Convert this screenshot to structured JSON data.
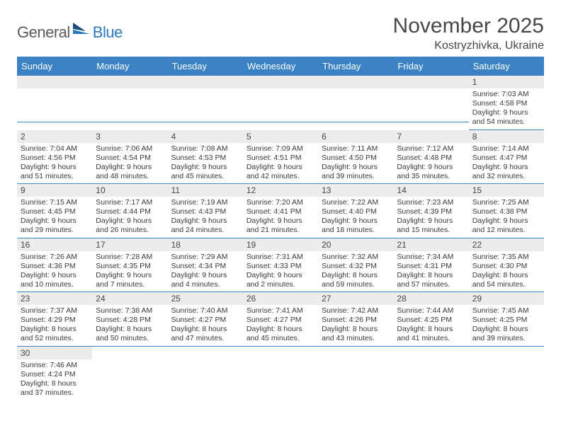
{
  "logo": {
    "part1": "General",
    "part2": "Blue"
  },
  "title": "November 2025",
  "location": "Kostryzhivka, Ukraine",
  "weekday_headers": [
    "Sunday",
    "Monday",
    "Tuesday",
    "Wednesday",
    "Thursday",
    "Friday",
    "Saturday"
  ],
  "header_bg": "#3a82c4",
  "header_fg": "#ffffff",
  "daynum_bg": "#ececec",
  "rule_color": "#3a82c4",
  "weeks": [
    [
      {
        "blank": true
      },
      {
        "blank": true
      },
      {
        "blank": true
      },
      {
        "blank": true
      },
      {
        "blank": true
      },
      {
        "blank": true
      },
      {
        "day": "1",
        "sunrise": "Sunrise: 7:03 AM",
        "sunset": "Sunset: 4:58 PM",
        "daylight1": "Daylight: 9 hours",
        "daylight2": "and 54 minutes."
      }
    ],
    [
      {
        "day": "2",
        "sunrise": "Sunrise: 7:04 AM",
        "sunset": "Sunset: 4:56 PM",
        "daylight1": "Daylight: 9 hours",
        "daylight2": "and 51 minutes."
      },
      {
        "day": "3",
        "sunrise": "Sunrise: 7:06 AM",
        "sunset": "Sunset: 4:54 PM",
        "daylight1": "Daylight: 9 hours",
        "daylight2": "and 48 minutes."
      },
      {
        "day": "4",
        "sunrise": "Sunrise: 7:08 AM",
        "sunset": "Sunset: 4:53 PM",
        "daylight1": "Daylight: 9 hours",
        "daylight2": "and 45 minutes."
      },
      {
        "day": "5",
        "sunrise": "Sunrise: 7:09 AM",
        "sunset": "Sunset: 4:51 PM",
        "daylight1": "Daylight: 9 hours",
        "daylight2": "and 42 minutes."
      },
      {
        "day": "6",
        "sunrise": "Sunrise: 7:11 AM",
        "sunset": "Sunset: 4:50 PM",
        "daylight1": "Daylight: 9 hours",
        "daylight2": "and 39 minutes."
      },
      {
        "day": "7",
        "sunrise": "Sunrise: 7:12 AM",
        "sunset": "Sunset: 4:48 PM",
        "daylight1": "Daylight: 9 hours",
        "daylight2": "and 35 minutes."
      },
      {
        "day": "8",
        "sunrise": "Sunrise: 7:14 AM",
        "sunset": "Sunset: 4:47 PM",
        "daylight1": "Daylight: 9 hours",
        "daylight2": "and 32 minutes."
      }
    ],
    [
      {
        "day": "9",
        "sunrise": "Sunrise: 7:15 AM",
        "sunset": "Sunset: 4:45 PM",
        "daylight1": "Daylight: 9 hours",
        "daylight2": "and 29 minutes."
      },
      {
        "day": "10",
        "sunrise": "Sunrise: 7:17 AM",
        "sunset": "Sunset: 4:44 PM",
        "daylight1": "Daylight: 9 hours",
        "daylight2": "and 26 minutes."
      },
      {
        "day": "11",
        "sunrise": "Sunrise: 7:19 AM",
        "sunset": "Sunset: 4:43 PM",
        "daylight1": "Daylight: 9 hours",
        "daylight2": "and 24 minutes."
      },
      {
        "day": "12",
        "sunrise": "Sunrise: 7:20 AM",
        "sunset": "Sunset: 4:41 PM",
        "daylight1": "Daylight: 9 hours",
        "daylight2": "and 21 minutes."
      },
      {
        "day": "13",
        "sunrise": "Sunrise: 7:22 AM",
        "sunset": "Sunset: 4:40 PM",
        "daylight1": "Daylight: 9 hours",
        "daylight2": "and 18 minutes."
      },
      {
        "day": "14",
        "sunrise": "Sunrise: 7:23 AM",
        "sunset": "Sunset: 4:39 PM",
        "daylight1": "Daylight: 9 hours",
        "daylight2": "and 15 minutes."
      },
      {
        "day": "15",
        "sunrise": "Sunrise: 7:25 AM",
        "sunset": "Sunset: 4:38 PM",
        "daylight1": "Daylight: 9 hours",
        "daylight2": "and 12 minutes."
      }
    ],
    [
      {
        "day": "16",
        "sunrise": "Sunrise: 7:26 AM",
        "sunset": "Sunset: 4:36 PM",
        "daylight1": "Daylight: 9 hours",
        "daylight2": "and 10 minutes."
      },
      {
        "day": "17",
        "sunrise": "Sunrise: 7:28 AM",
        "sunset": "Sunset: 4:35 PM",
        "daylight1": "Daylight: 9 hours",
        "daylight2": "and 7 minutes."
      },
      {
        "day": "18",
        "sunrise": "Sunrise: 7:29 AM",
        "sunset": "Sunset: 4:34 PM",
        "daylight1": "Daylight: 9 hours",
        "daylight2": "and 4 minutes."
      },
      {
        "day": "19",
        "sunrise": "Sunrise: 7:31 AM",
        "sunset": "Sunset: 4:33 PM",
        "daylight1": "Daylight: 9 hours",
        "daylight2": "and 2 minutes."
      },
      {
        "day": "20",
        "sunrise": "Sunrise: 7:32 AM",
        "sunset": "Sunset: 4:32 PM",
        "daylight1": "Daylight: 8 hours",
        "daylight2": "and 59 minutes."
      },
      {
        "day": "21",
        "sunrise": "Sunrise: 7:34 AM",
        "sunset": "Sunset: 4:31 PM",
        "daylight1": "Daylight: 8 hours",
        "daylight2": "and 57 minutes."
      },
      {
        "day": "22",
        "sunrise": "Sunrise: 7:35 AM",
        "sunset": "Sunset: 4:30 PM",
        "daylight1": "Daylight: 8 hours",
        "daylight2": "and 54 minutes."
      }
    ],
    [
      {
        "day": "23",
        "sunrise": "Sunrise: 7:37 AM",
        "sunset": "Sunset: 4:29 PM",
        "daylight1": "Daylight: 8 hours",
        "daylight2": "and 52 minutes."
      },
      {
        "day": "24",
        "sunrise": "Sunrise: 7:38 AM",
        "sunset": "Sunset: 4:28 PM",
        "daylight1": "Daylight: 8 hours",
        "daylight2": "and 50 minutes."
      },
      {
        "day": "25",
        "sunrise": "Sunrise: 7:40 AM",
        "sunset": "Sunset: 4:27 PM",
        "daylight1": "Daylight: 8 hours",
        "daylight2": "and 47 minutes."
      },
      {
        "day": "26",
        "sunrise": "Sunrise: 7:41 AM",
        "sunset": "Sunset: 4:27 PM",
        "daylight1": "Daylight: 8 hours",
        "daylight2": "and 45 minutes."
      },
      {
        "day": "27",
        "sunrise": "Sunrise: 7:42 AM",
        "sunset": "Sunset: 4:26 PM",
        "daylight1": "Daylight: 8 hours",
        "daylight2": "and 43 minutes."
      },
      {
        "day": "28",
        "sunrise": "Sunrise: 7:44 AM",
        "sunset": "Sunset: 4:25 PM",
        "daylight1": "Daylight: 8 hours",
        "daylight2": "and 41 minutes."
      },
      {
        "day": "29",
        "sunrise": "Sunrise: 7:45 AM",
        "sunset": "Sunset: 4:25 PM",
        "daylight1": "Daylight: 8 hours",
        "daylight2": "and 39 minutes."
      }
    ],
    [
      {
        "day": "30",
        "sunrise": "Sunrise: 7:46 AM",
        "sunset": "Sunset: 4:24 PM",
        "daylight1": "Daylight: 8 hours",
        "daylight2": "and 37 minutes."
      },
      {
        "blank_after": true
      },
      {
        "blank_after": true
      },
      {
        "blank_after": true
      },
      {
        "blank_after": true
      },
      {
        "blank_after": true
      },
      {
        "blank_after": true
      }
    ]
  ]
}
